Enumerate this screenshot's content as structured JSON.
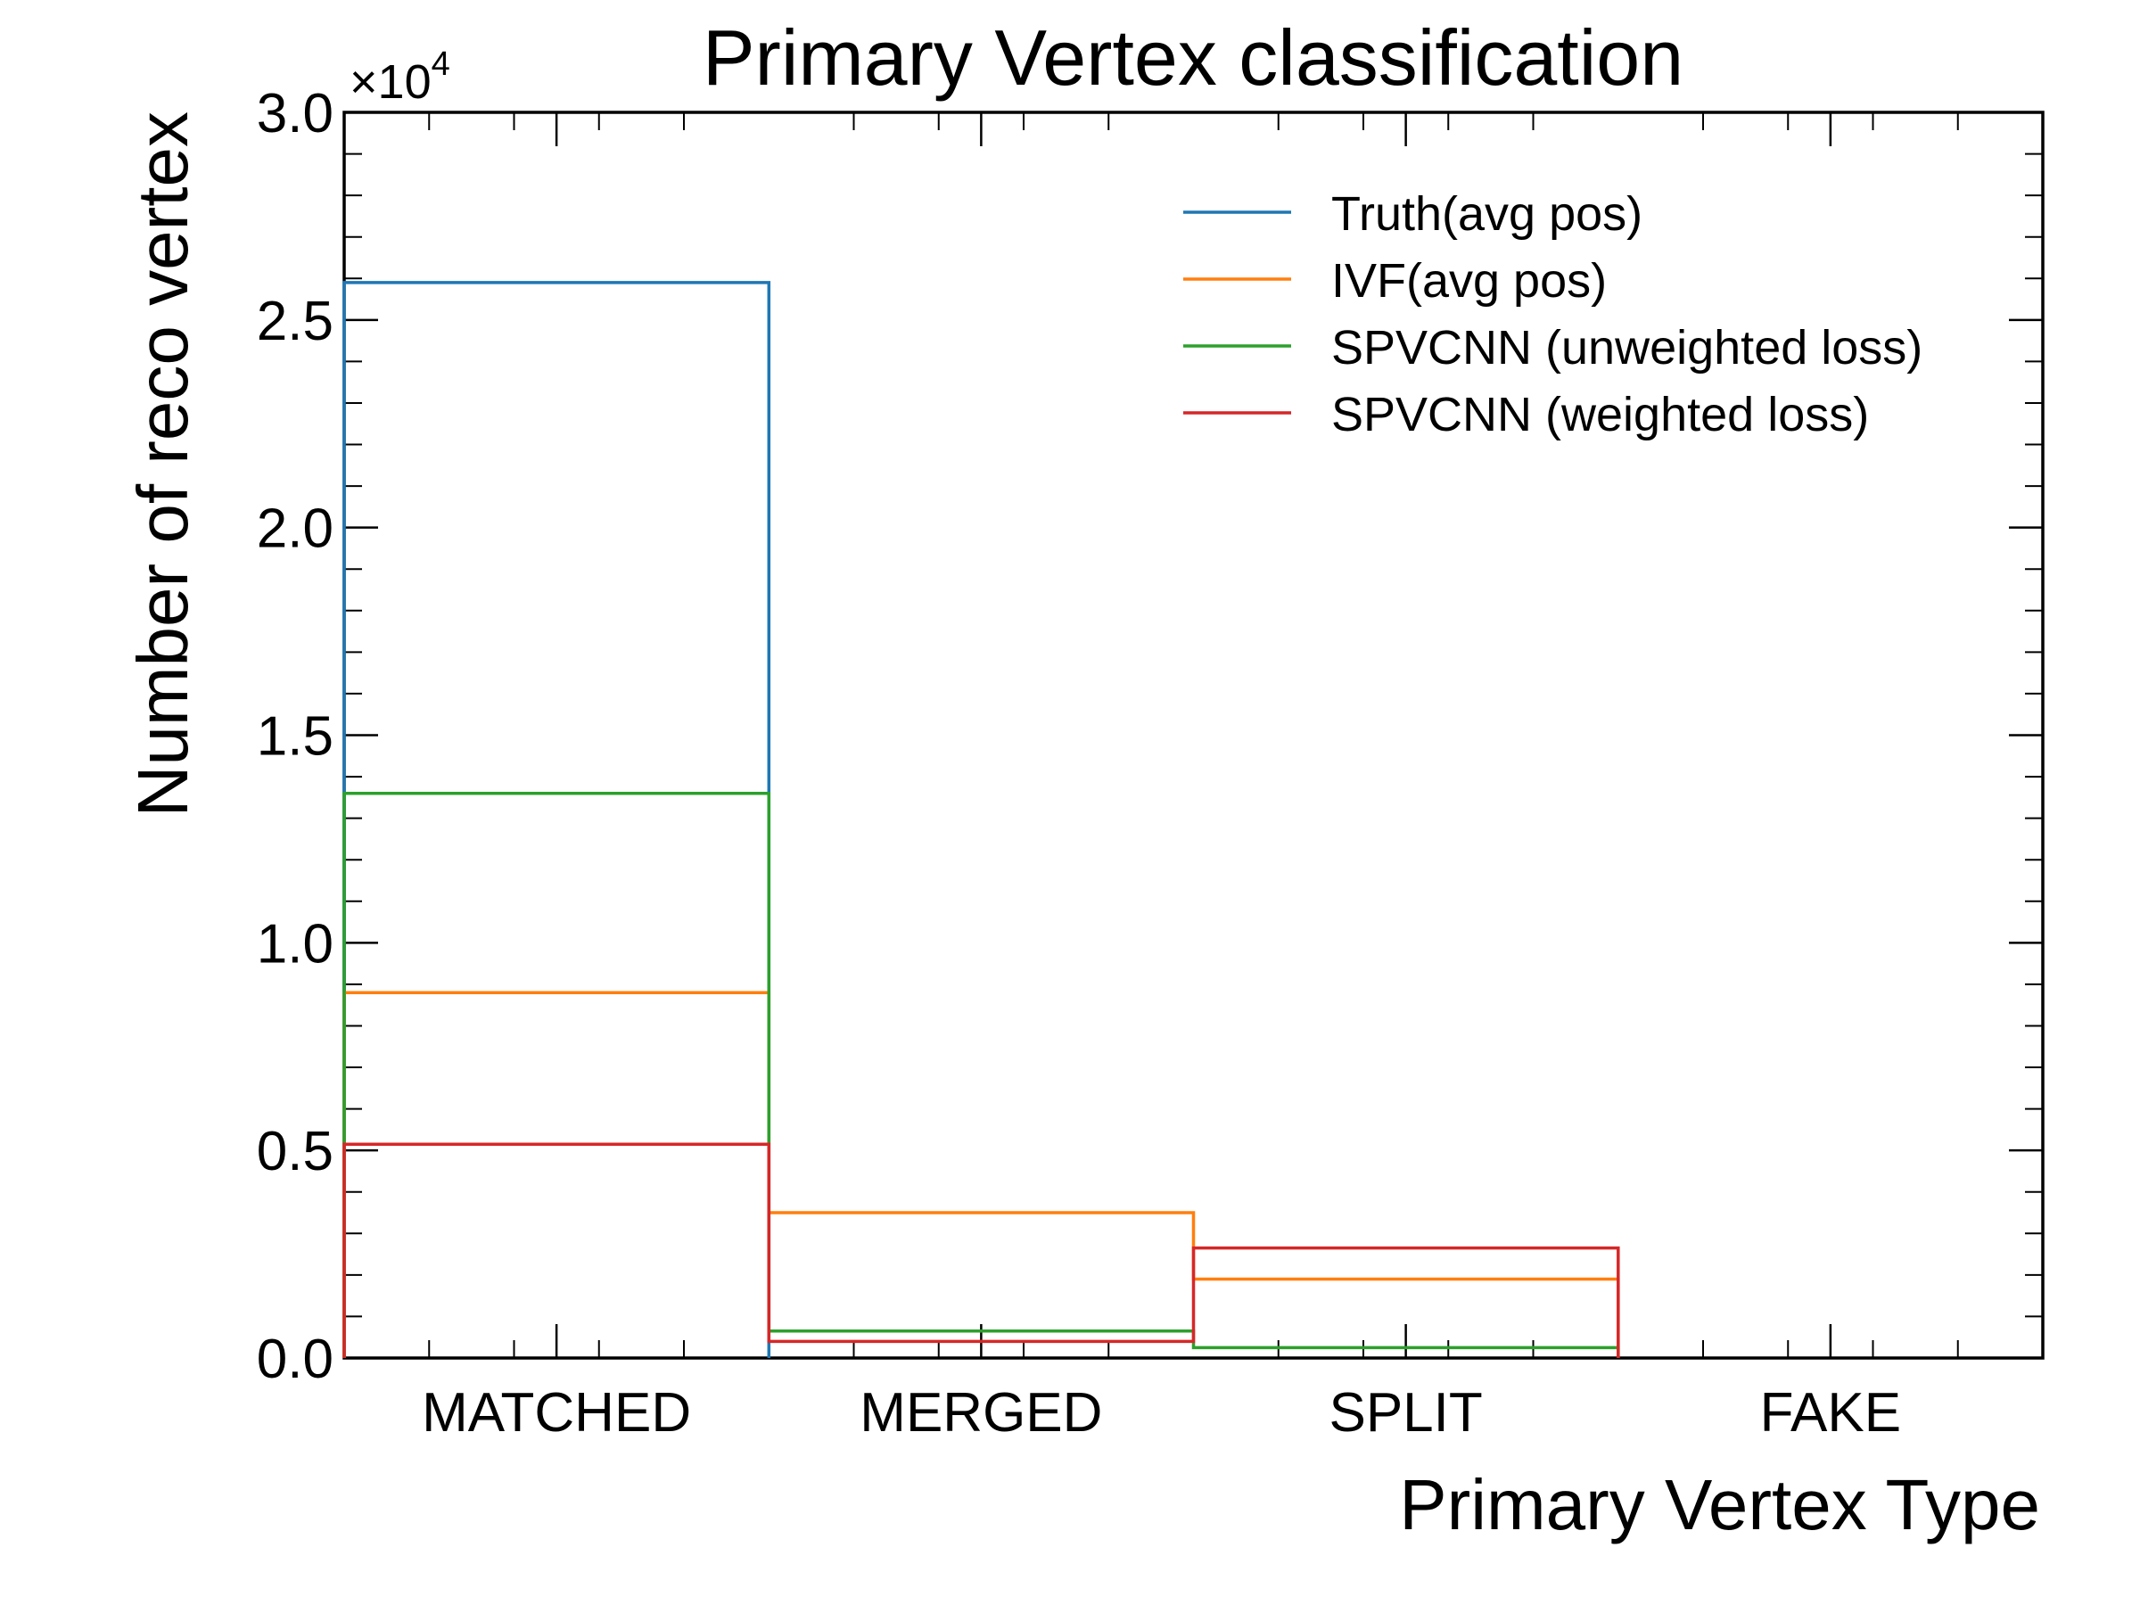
{
  "chart_data": {
    "type": "step",
    "title": "Primary Vertex classification",
    "xlabel": "Primary Vertex Type",
    "ylabel": "Number of reco vertex",
    "y_multiplier_label": "×10",
    "y_multiplier_exponent": "4",
    "categories": [
      "MATCHED",
      "MERGED",
      "SPLIT",
      "FAKE"
    ],
    "ylim": [
      0,
      3.0
    ],
    "yticks": [
      "0.0",
      "0.5",
      "1.0",
      "1.5",
      "2.0",
      "2.5",
      "3.0"
    ],
    "y_units": "×10^4",
    "grid": false,
    "legend_position": "top-right",
    "series": [
      {
        "name": "Truth(avg pos)",
        "color": "#1f77b4",
        "values": [
          2.59,
          0,
          0,
          0
        ]
      },
      {
        "name": "IVF(avg pos)",
        "color": "#ff7f0e",
        "values": [
          0.88,
          0.35,
          0.19,
          0
        ]
      },
      {
        "name": "SPVCNN (unweighted loss)",
        "color": "#2ca02c",
        "values": [
          1.36,
          0.065,
          0.025,
          0
        ]
      },
      {
        "name": "SPVCNN (weighted loss)",
        "color": "#d62728",
        "values": [
          0.515,
          0.04,
          0.265,
          0
        ]
      }
    ]
  }
}
